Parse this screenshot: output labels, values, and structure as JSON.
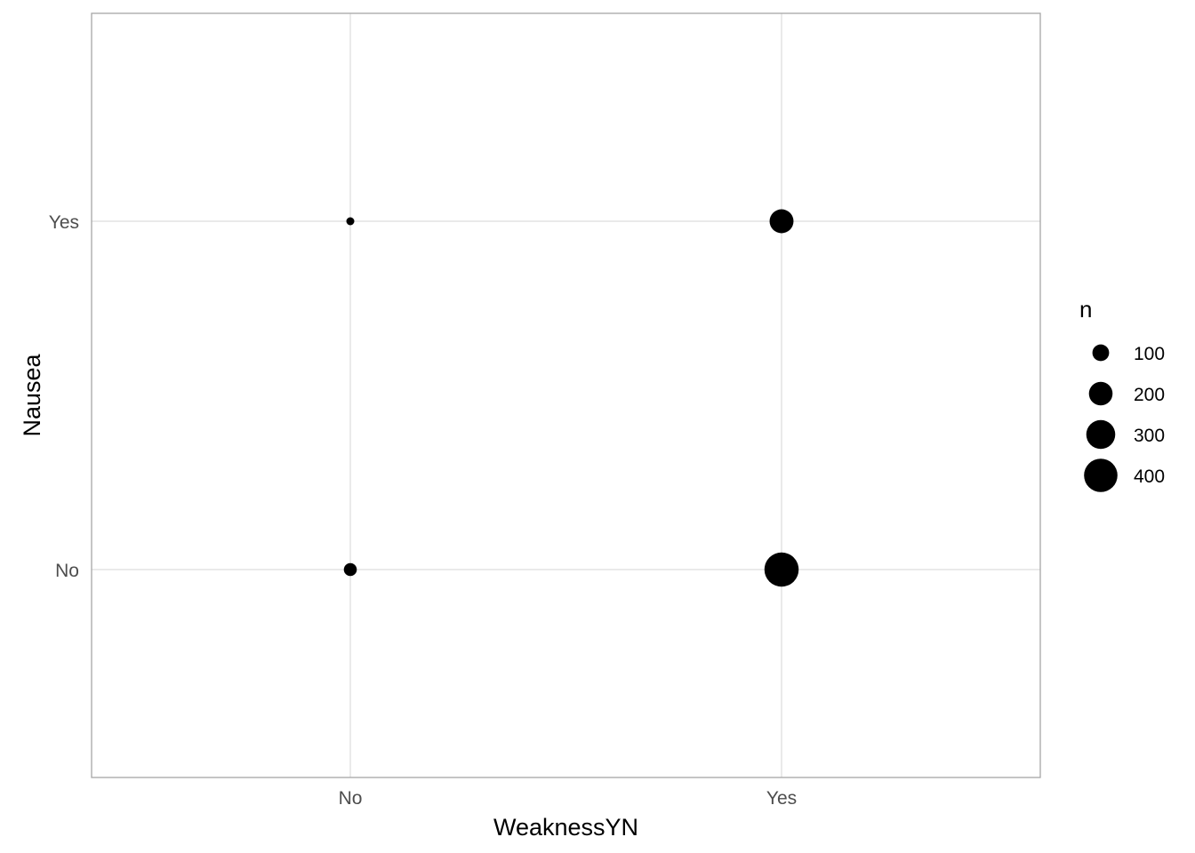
{
  "chart_data": {
    "type": "scatter",
    "xlabel": "WeaknessYN",
    "ylabel": "Nausea",
    "x_categories": [
      "No",
      "Yes"
    ],
    "y_categories": [
      "No",
      "Yes"
    ],
    "points": [
      {
        "x": "No",
        "y": "Yes",
        "n": 10
      },
      {
        "x": "Yes",
        "y": "Yes",
        "n": 205
      },
      {
        "x": "No",
        "y": "No",
        "n": 60
      },
      {
        "x": "Yes",
        "y": "No",
        "n": 420
      }
    ],
    "size_legend": {
      "title": "n",
      "values": [
        100,
        200,
        300,
        400
      ],
      "labels": [
        "100",
        "200",
        "300",
        "400"
      ]
    },
    "grid": true,
    "legend_position": "right",
    "colors": {
      "point": "#000000",
      "grid": "#dedede",
      "panel_border": "#a6a6a6",
      "tick_text": "#4d4d4d"
    }
  }
}
